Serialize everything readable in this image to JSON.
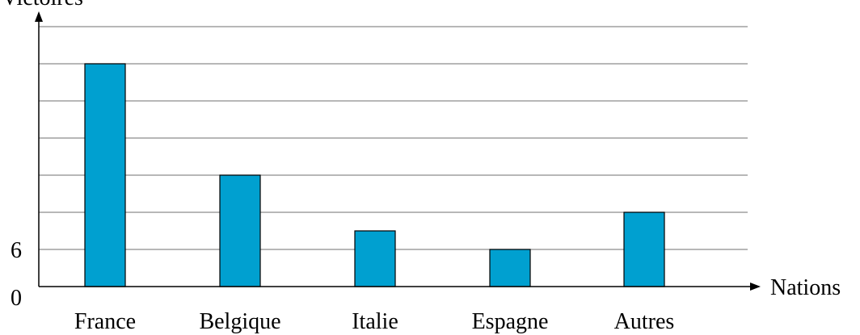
{
  "chart_data": {
    "type": "bar",
    "title": "",
    "ylabel": "Victoires",
    "xlabel": "Nations",
    "categories": [
      "France",
      "Belgique",
      "Italie",
      "Espagne",
      "Autres"
    ],
    "values": [
      36,
      18,
      9,
      6,
      12
    ],
    "ylim": [
      0,
      42
    ],
    "yticks_labeled": [
      0,
      6
    ],
    "grid_step": 6,
    "grid": true,
    "legend": "none",
    "bar_color": "#00a0d0"
  }
}
